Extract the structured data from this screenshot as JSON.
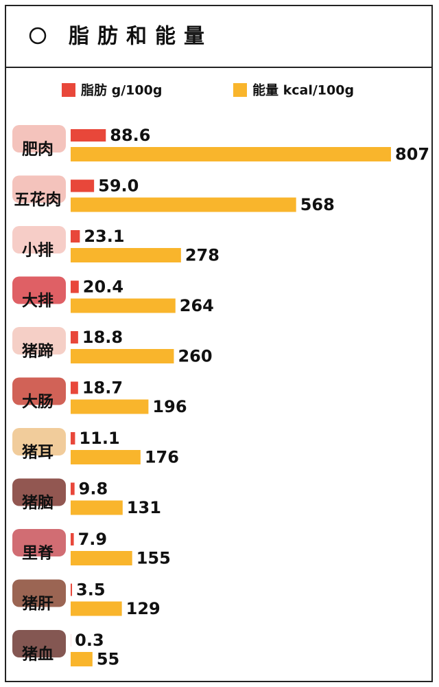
{
  "chart_data": {
    "type": "bar",
    "orientation": "horizontal",
    "title": "脂肪和能量",
    "categories": [
      "肥肉",
      "五花肉",
      "小排",
      "大排",
      "猪蹄",
      "大肠",
      "猪耳",
      "猪脑",
      "里脊",
      "猪肝",
      "猪血"
    ],
    "series": [
      {
        "name": "脂肪 g/100g",
        "color": "#e8473a",
        "values": [
          88.6,
          59.0,
          23.1,
          20.4,
          18.8,
          18.7,
          11.1,
          9.8,
          7.9,
          3.5,
          0.3
        ],
        "value_labels": [
          "88.6",
          "59.0",
          "23.1",
          "20.4",
          "18.8",
          "18.7",
          "11.1",
          "9.8",
          "7.9",
          "3.5",
          "0.3"
        ]
      },
      {
        "name": "能量 kcal/100g",
        "color": "#f9b52c",
        "values": [
          807,
          568,
          278,
          264,
          260,
          196,
          176,
          131,
          155,
          129,
          55
        ]
      }
    ]
  }
}
